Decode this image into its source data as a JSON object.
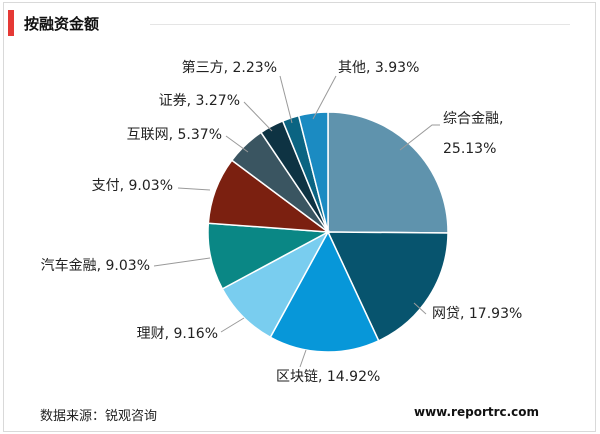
{
  "header": {
    "title": "按融资金额"
  },
  "footer": {
    "source": "数据来源：锐观咨询",
    "website": "www.reportrc.com"
  },
  "chart_data": {
    "type": "pie",
    "title": "按融资金额",
    "unit": "%",
    "slices": [
      {
        "name": "综合金融",
        "value": 25.13,
        "label": "综合金融,",
        "value_label": "25.13%",
        "color": "#5f93ad"
      },
      {
        "name": "网贷",
        "value": 17.93,
        "label": "网贷, 17.93%",
        "color": "#07546e"
      },
      {
        "name": "区块链",
        "value": 14.92,
        "label": "区块链, 14.92%",
        "color": "#0797d9"
      },
      {
        "name": "理财",
        "value": 9.16,
        "label": "理财, 9.16%",
        "color": "#79cdef"
      },
      {
        "name": "汽车金融",
        "value": 9.03,
        "label": "汽车金融, 9.03%",
        "color": "#0a8785"
      },
      {
        "name": "支付",
        "value": 9.03,
        "label": "支付, 9.03%",
        "color": "#7b2010"
      },
      {
        "name": "互联网",
        "value": 5.37,
        "label": "互联网, 5.37%",
        "color": "#3a5561"
      },
      {
        "name": "证券",
        "value": 3.27,
        "label": "证券, 3.27%",
        "color": "#0e3343"
      },
      {
        "name": "第三方",
        "value": 2.23,
        "label": "第三方, 2.23%",
        "color": "#0b6482"
      },
      {
        "name": "其他",
        "value": 3.93,
        "label": "其他, 3.93%",
        "color": "#1b8bc2"
      }
    ]
  }
}
